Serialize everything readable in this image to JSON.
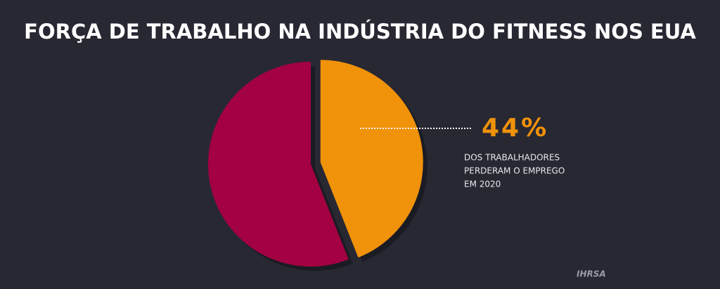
{
  "chart_data": {
    "type": "pie",
    "title": "FORÇA DE TRABALHO NA INDÚSTRIA DO FITNESS NOS EUA",
    "values": [
      44,
      56
    ],
    "value_labels": [
      "44%",
      null
    ],
    "colors": [
      "#f0920a",
      "#a30142"
    ],
    "annotation": [
      "DOS TRABALHADORES",
      "PERDERAM O EMPREGO",
      "EM 2020"
    ],
    "logo": "IHRSA"
  }
}
